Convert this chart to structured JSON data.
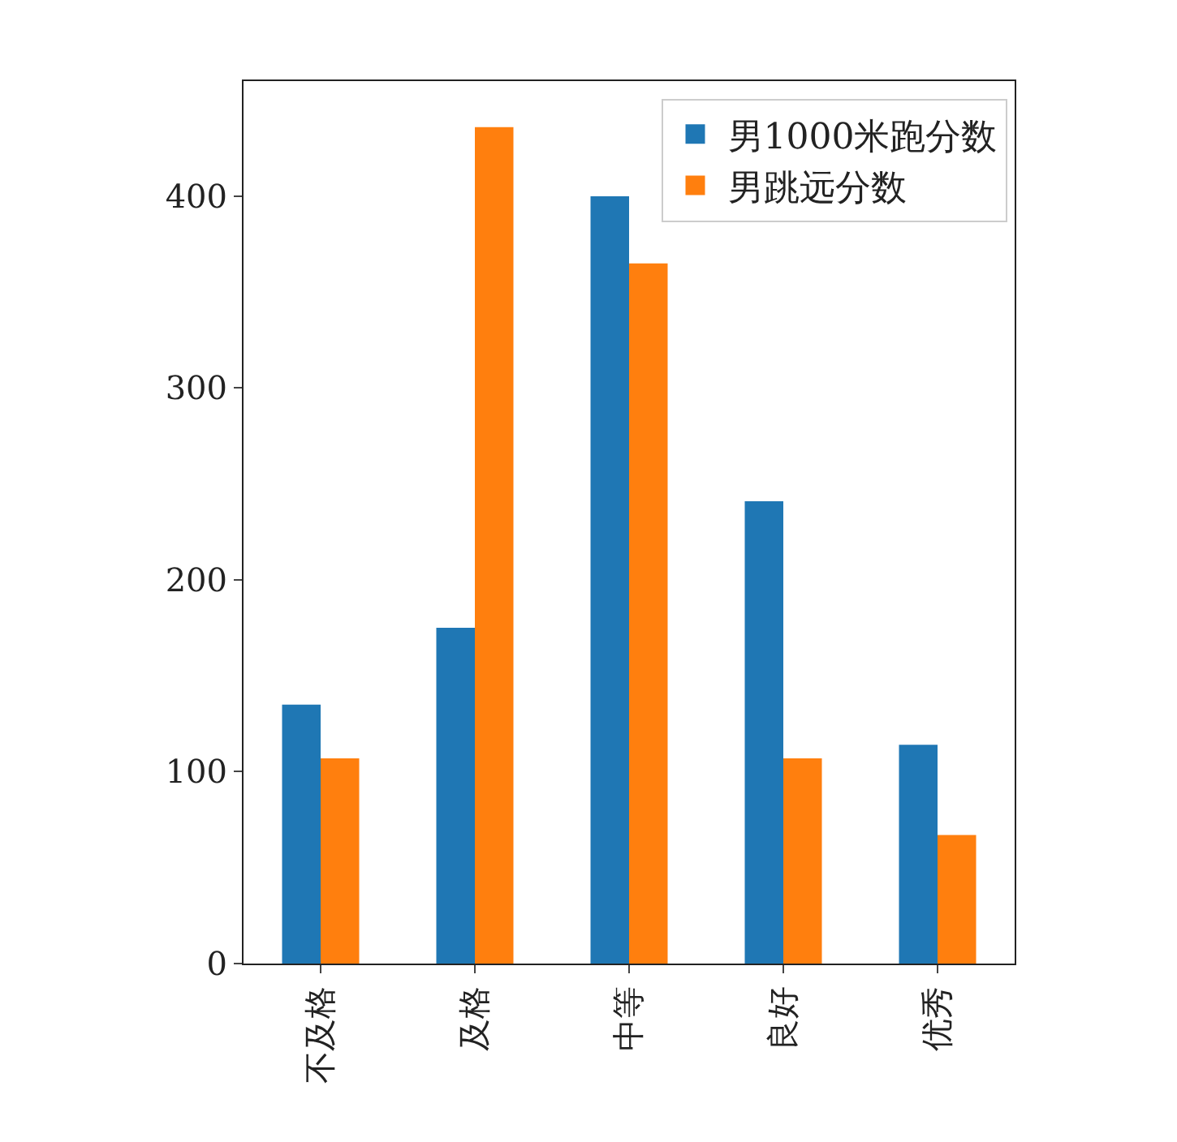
{
  "chart_data": {
    "type": "bar",
    "categories": [
      "不及格",
      "及格",
      "中等",
      "良好",
      "优秀"
    ],
    "series": [
      {
        "name": "男1000米跑分数",
        "color": "#1f77b4",
        "values": [
          135,
          175,
          400,
          241,
          114
        ]
      },
      {
        "name": "男跳远分数",
        "color": "#ff7f0e",
        "values": [
          107,
          436,
          365,
          107,
          67
        ]
      }
    ],
    "ylim": [
      0,
      460
    ],
    "yticks": [
      0,
      100,
      200,
      300,
      400
    ],
    "grid": false,
    "legend": "top right"
  }
}
